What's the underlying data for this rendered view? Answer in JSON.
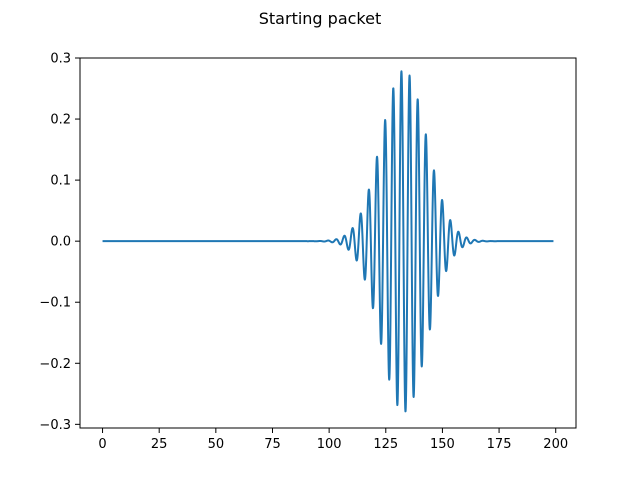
{
  "chart_data": {
    "type": "line",
    "title": "Starting packet",
    "xlabel": "",
    "ylabel": "",
    "xlim": [
      -9.95,
      208.95
    ],
    "ylim": [
      -0.306,
      0.3
    ],
    "xticks": [
      0,
      25,
      50,
      75,
      100,
      125,
      150,
      175,
      200
    ],
    "yticks": [
      -0.3,
      -0.2,
      -0.1,
      0.0,
      0.1,
      0.2,
      0.3
    ],
    "xtick_labels": [
      "0",
      "25",
      "50",
      "75",
      "100",
      "125",
      "150",
      "175",
      "200"
    ],
    "ytick_labels": [
      "−0.3",
      "−0.2",
      "−0.1",
      "0.0",
      "0.1",
      "0.2",
      "0.3"
    ],
    "grid": false,
    "legend": "none",
    "series": [
      {
        "color": "#1f77b4",
        "description": "Gaussian-modulated oscillation (wave packet)",
        "x_range": [
          0,
          199
        ],
        "center": 133,
        "envelope_amplitude": 0.28,
        "envelope_sigma": 10,
        "wavelength": 3.6,
        "phase_reference_x": 133.7,
        "phase_reference_sign": -1
      }
    ]
  }
}
